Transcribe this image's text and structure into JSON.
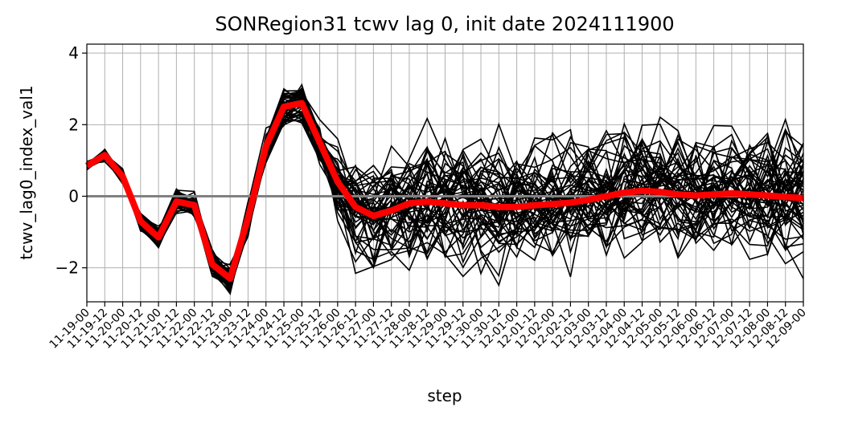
{
  "chart_data": {
    "type": "line",
    "title": "SONRegion31 tcwv lag 0, init date 2024111900",
    "xlabel": "step",
    "ylabel": "tcwv_lag0_index_val1",
    "ylim": [
      -2.95,
      4.25
    ],
    "yticks": [
      -2,
      0,
      2,
      4
    ],
    "grid": true,
    "reference_line": 0,
    "categories": [
      "11-19-00",
      "11-19-12",
      "11-20-00",
      "11-20-12",
      "11-21-00",
      "11-21-12",
      "11-22-00",
      "11-22-12",
      "11-23-00",
      "11-23-12",
      "11-24-00",
      "11-24-12",
      "11-25-00",
      "11-25-12",
      "11-26-00",
      "11-26-12",
      "11-27-00",
      "11-27-12",
      "11-28-00",
      "11-28-12",
      "11-29-00",
      "11-29-12",
      "11-30-00",
      "11-30-12",
      "12-01-00",
      "12-01-12",
      "12-02-00",
      "12-02-12",
      "12-03-00",
      "12-03-12",
      "12-04-00",
      "12-04-12",
      "12-05-00",
      "12-05-12",
      "12-06-00",
      "12-06-12",
      "12-07-00",
      "12-07-12",
      "12-08-00",
      "12-08-12",
      "12-09-00"
    ],
    "ensemble_mean": [
      0.85,
      1.15,
      0.55,
      -0.7,
      -1.15,
      -0.15,
      -0.25,
      -1.9,
      -2.3,
      -0.6,
      1.4,
      2.5,
      2.6,
      1.5,
      0.4,
      -0.3,
      -0.55,
      -0.4,
      -0.2,
      -0.15,
      -0.2,
      -0.25,
      -0.25,
      -0.3,
      -0.3,
      -0.25,
      -0.22,
      -0.18,
      -0.1,
      0.0,
      0.1,
      0.15,
      0.12,
      0.05,
      0.02,
      0.05,
      0.08,
      0.05,
      0.02,
      -0.02,
      -0.05
    ],
    "ensemble_members": 51,
    "colors": {
      "members": "#000000",
      "mean": "#ff0000",
      "zero_line": "#808080",
      "grid": "#b0b0b0"
    }
  }
}
